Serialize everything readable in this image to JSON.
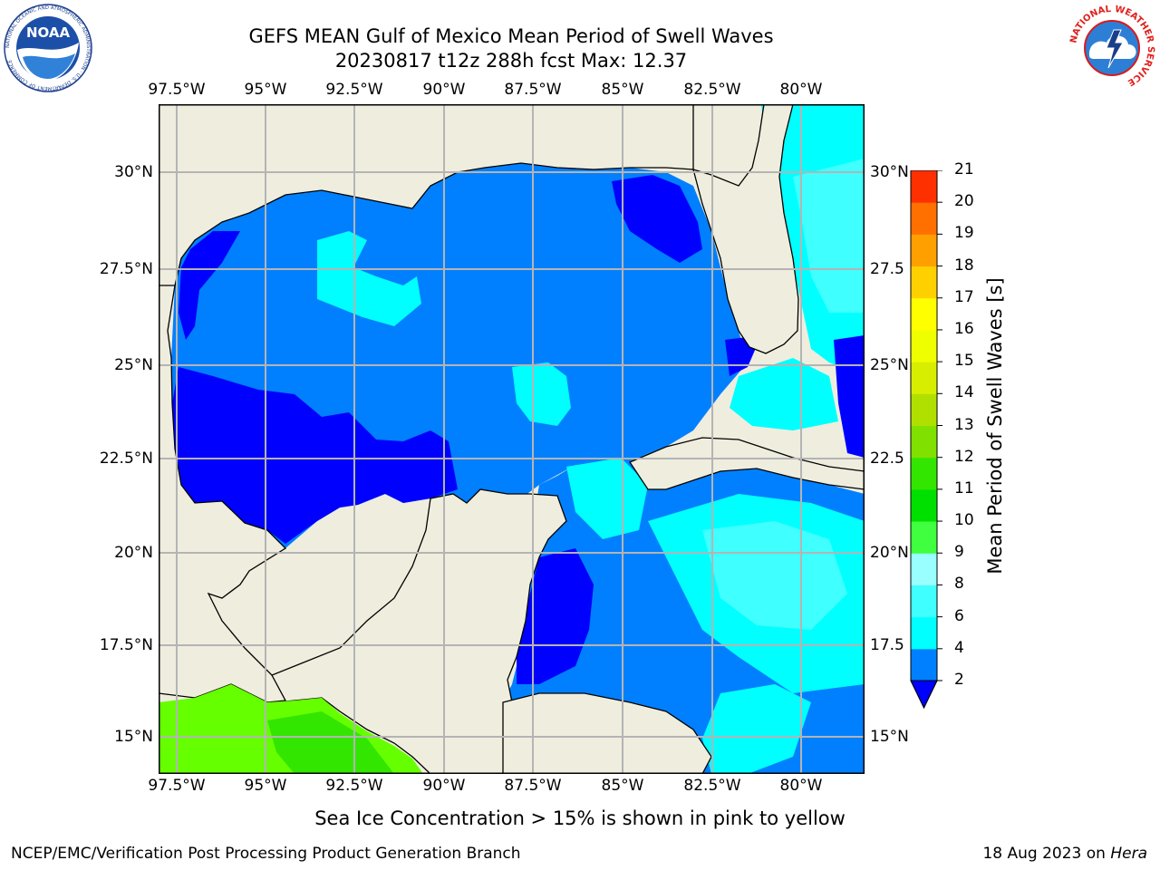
{
  "header": {
    "title_line1": "GEFS MEAN Gulf of Mexico Mean Period of Swell Waves",
    "title_line2": "20230817 t12z 288h fcst   Max: 12.37"
  },
  "logos": {
    "left": "NOAA",
    "left_ring_text": "NATIONAL OCEANIC AND ATMOSPHERIC ADMINISTRATION · U.S. DEPARTMENT OF COMMERCE",
    "right_ring_text": "NATIONAL WEATHER SERVICE"
  },
  "map": {
    "lon_ticks": [
      "97.5°W",
      "95°W",
      "92.5°W",
      "90°W",
      "87.5°W",
      "85°W",
      "82.5°W",
      "80°W"
    ],
    "lat_ticks_left": [
      "30°N",
      "27.5°N",
      "25°N",
      "22.5°N",
      "20°N",
      "17.5°N",
      "15°N"
    ],
    "lat_ticks_right": [
      "30°N",
      "27.5",
      "25°N",
      "22.5",
      "20°N",
      "17.5",
      "15°N"
    ],
    "colors": {
      "land": "#efedde",
      "ocean_4": "#0080ff",
      "ocean_2": "#0000ff",
      "ocean_6": "#00ffff",
      "ocean_8": "#40ffff",
      "green_9": "#3fff3f",
      "green_11": "#66ff00",
      "grid": "#b4b4b4"
    }
  },
  "colorbar": {
    "label": "Mean Period of Swell Waves [s]",
    "ticks": [
      "2",
      "4",
      "6",
      "8",
      "9",
      "10",
      "11",
      "12",
      "13",
      "14",
      "15",
      "16",
      "17",
      "18",
      "19",
      "20",
      "21"
    ],
    "colors": [
      "#0080ff",
      "#00ffff",
      "#40ffff",
      "#99ffff",
      "#3fff3f",
      "#00e000",
      "#33e600",
      "#80e000",
      "#b0e000",
      "#d8ee00",
      "#f0ff00",
      "#ffff00",
      "#ffd000",
      "#ffa000",
      "#ff7000",
      "#ff3000",
      "#ff0000"
    ],
    "extend_color": "#0000ff"
  },
  "notes": {
    "sea_ice": "Sea Ice Concentration > 15% is shown in pink to yellow"
  },
  "footer": {
    "left": "NCEP/EMC/Verification Post Processing Product Generation Branch",
    "right_date": "18 Aug 2023 on ",
    "right_host": "Hera"
  }
}
